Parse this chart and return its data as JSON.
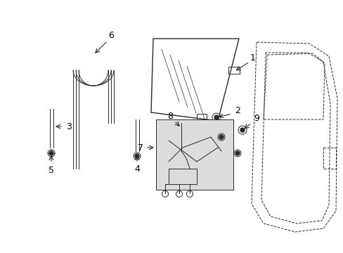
{
  "bg_color": "#ffffff",
  "line_color": "#2a2a2a",
  "label_color": "#000000",
  "shaded_box_color": "#dcdcdc",
  "figsize": [
    4.89,
    3.6
  ],
  "dpi": 100
}
